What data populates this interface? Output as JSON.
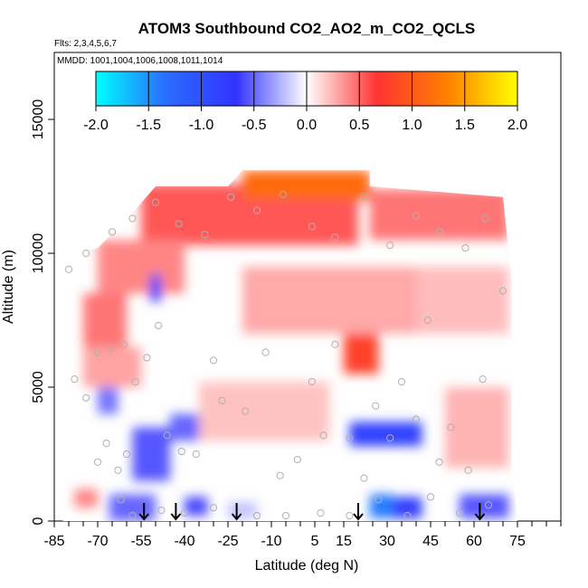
{
  "chart_data": {
    "type": "heatmap",
    "title": "ATOM3 Southbound CO2_AO2_m_CO2_QCLS",
    "subtitle_flights": "Flts: 2,3,4,5,6,7",
    "subtitle_dates": "MMDD: 1001,1004,1006,1008,1011,1014",
    "xlabel": "Latitude (deg N)",
    "ylabel": "Altitude (m)",
    "xlim": [
      -85,
      90
    ],
    "ylim": [
      0,
      17500
    ],
    "x_ticks": [
      -85,
      -70,
      -55,
      -40,
      -25,
      -10,
      5,
      15,
      30,
      45,
      60,
      75
    ],
    "x_tick_labels": [
      "-85",
      "-70",
      "-55",
      "-40",
      "-25",
      "-10",
      "5",
      "15",
      "30",
      "45",
      "60",
      "75"
    ],
    "y_ticks": [
      0,
      5000,
      10000,
      15000
    ],
    "y_tick_labels": [
      "0",
      "5000",
      "10000",
      "15000"
    ],
    "colorbar": {
      "range": [
        -2.0,
        2.0
      ],
      "ticks": [
        -2.0,
        -1.5,
        -1.0,
        -0.5,
        0.0,
        0.5,
        1.0,
        1.5,
        2.0
      ],
      "tick_labels": [
        "-2.0",
        "-1.5",
        "-1.0",
        "-0.5",
        "0.0",
        "0.5",
        "1.0",
        "1.5",
        "2.0"
      ],
      "colors": [
        "#00ffff",
        "#2a6cff",
        "#3333ff",
        "#ffffff",
        "#ff3333",
        "#ff8000",
        "#ffff00"
      ]
    },
    "arrow_latitudes": [
      -54,
      -43,
      -22,
      20,
      62
    ],
    "patches": [
      {
        "lat": [
          -55,
          20
        ],
        "alt": [
          10300,
          12600
        ],
        "value": 0.55
      },
      {
        "lat": [
          -20,
          24
        ],
        "alt": [
          12000,
          13100
        ],
        "value": 1.15
      },
      {
        "lat": [
          24,
          72
        ],
        "alt": [
          10500,
          12400
        ],
        "value": 0.45
      },
      {
        "lat": [
          -70,
          -40
        ],
        "alt": [
          8500,
          10500
        ],
        "value": 0.4
      },
      {
        "lat": [
          -75,
          -60
        ],
        "alt": [
          6500,
          8500
        ],
        "value": 0.45
      },
      {
        "lat": [
          -75,
          -55
        ],
        "alt": [
          5000,
          6500
        ],
        "value": 0.3
      },
      {
        "lat": [
          -20,
          40
        ],
        "alt": [
          7000,
          9500
        ],
        "value": 0.28
      },
      {
        "lat": [
          15,
          27
        ],
        "alt": [
          5500,
          7000
        ],
        "value": 0.8
      },
      {
        "lat": [
          40,
          72
        ],
        "alt": [
          7000,
          9500
        ],
        "value": 0.22
      },
      {
        "lat": [
          -35,
          10
        ],
        "alt": [
          3000,
          5200
        ],
        "value": 0.2
      },
      {
        "lat": [
          50,
          72
        ],
        "alt": [
          2000,
          5000
        ],
        "value": 0.25
      },
      {
        "lat": [
          -52,
          -48
        ],
        "alt": [
          8200,
          9200
        ],
        "value": -0.6
      },
      {
        "lat": [
          -70,
          -63
        ],
        "alt": [
          4000,
          5000
        ],
        "value": -0.45
      },
      {
        "lat": [
          -58,
          -45
        ],
        "alt": [
          1500,
          3500
        ],
        "value": -0.55
      },
      {
        "lat": [
          -45,
          -35
        ],
        "alt": [
          3000,
          4000
        ],
        "value": -0.5
      },
      {
        "lat": [
          17,
          42
        ],
        "alt": [
          2800,
          3700
        ],
        "value": -0.85
      },
      {
        "lat": [
          -66,
          -50
        ],
        "alt": [
          0,
          1000
        ],
        "value": -0.5
      },
      {
        "lat": [
          -40,
          -32
        ],
        "alt": [
          200,
          900
        ],
        "value": -0.6
      },
      {
        "lat": [
          -25,
          -15
        ],
        "alt": [
          100,
          700
        ],
        "value": -0.2
      },
      {
        "lat": [
          24,
          32
        ],
        "alt": [
          100,
          1000
        ],
        "value": -1.4
      },
      {
        "lat": [
          32,
          42
        ],
        "alt": [
          100,
          900
        ],
        "value": -0.8
      },
      {
        "lat": [
          55,
          72
        ],
        "alt": [
          100,
          1000
        ],
        "value": -0.55
      },
      {
        "lat": [
          -78,
          -70
        ],
        "alt": [
          500,
          1200
        ],
        "value": 0.4
      }
    ],
    "domain_polygon": [
      [
        -82,
        0
      ],
      [
        -82,
        5500
      ],
      [
        -84,
        9800
      ],
      [
        -70,
        10200
      ],
      [
        -58,
        11500
      ],
      [
        -50,
        12500
      ],
      [
        -25,
        12500
      ],
      [
        -20,
        13100
      ],
      [
        24,
        13100
      ],
      [
        24,
        12500
      ],
      [
        70,
        12100
      ],
      [
        73,
        9000
      ],
      [
        73,
        2000
      ],
      [
        75,
        0
      ]
    ],
    "sample_points": [
      [
        -78,
        5300
      ],
      [
        -74,
        4600
      ],
      [
        -70,
        2200
      ],
      [
        -67,
        2900
      ],
      [
        -63,
        1900
      ],
      [
        -60,
        2500
      ],
      [
        -66,
        6400
      ],
      [
        -70,
        6300
      ],
      [
        -61,
        6600
      ],
      [
        -57,
        5200
      ],
      [
        -53,
        6100
      ],
      [
        -49,
        7300
      ],
      [
        -46,
        3200
      ],
      [
        -41,
        2600
      ],
      [
        -36,
        2500
      ],
      [
        -30,
        6000
      ],
      [
        -27,
        4500
      ],
      [
        -19,
        4100
      ],
      [
        -12,
        6300
      ],
      [
        -7,
        1700
      ],
      [
        -1,
        2300
      ],
      [
        4,
        5200
      ],
      [
        8,
        3200
      ],
      [
        12,
        6600
      ],
      [
        17,
        3100
      ],
      [
        22,
        1600
      ],
      [
        26,
        4300
      ],
      [
        31,
        3100
      ],
      [
        35,
        5200
      ],
      [
        40,
        3800
      ],
      [
        44,
        7500
      ],
      [
        48,
        2200
      ],
      [
        52,
        3500
      ],
      [
        58,
        1900
      ],
      [
        63,
        5300
      ],
      [
        70,
        8600
      ],
      [
        -80,
        9400
      ],
      [
        -74,
        10000
      ],
      [
        -65,
        10800
      ],
      [
        -58,
        11300
      ],
      [
        -50,
        11900
      ],
      [
        -42,
        11100
      ],
      [
        -33,
        10700
      ],
      [
        -24,
        12100
      ],
      [
        -15,
        11600
      ],
      [
        -6,
        12200
      ],
      [
        4,
        11000
      ],
      [
        12,
        10600
      ],
      [
        22,
        12100
      ],
      [
        31,
        10300
      ],
      [
        40,
        11400
      ],
      [
        48,
        10800
      ],
      [
        57,
        10200
      ],
      [
        64,
        11300
      ],
      [
        -62,
        800
      ],
      [
        -58,
        200
      ],
      [
        -48,
        400
      ],
      [
        -40,
        300
      ],
      [
        -30,
        500
      ],
      [
        -15,
        200
      ],
      [
        -5,
        200
      ],
      [
        7,
        300
      ],
      [
        17,
        200
      ],
      [
        27,
        800
      ],
      [
        37,
        200
      ],
      [
        45,
        900
      ],
      [
        55,
        300
      ],
      [
        65,
        600
      ]
    ]
  }
}
